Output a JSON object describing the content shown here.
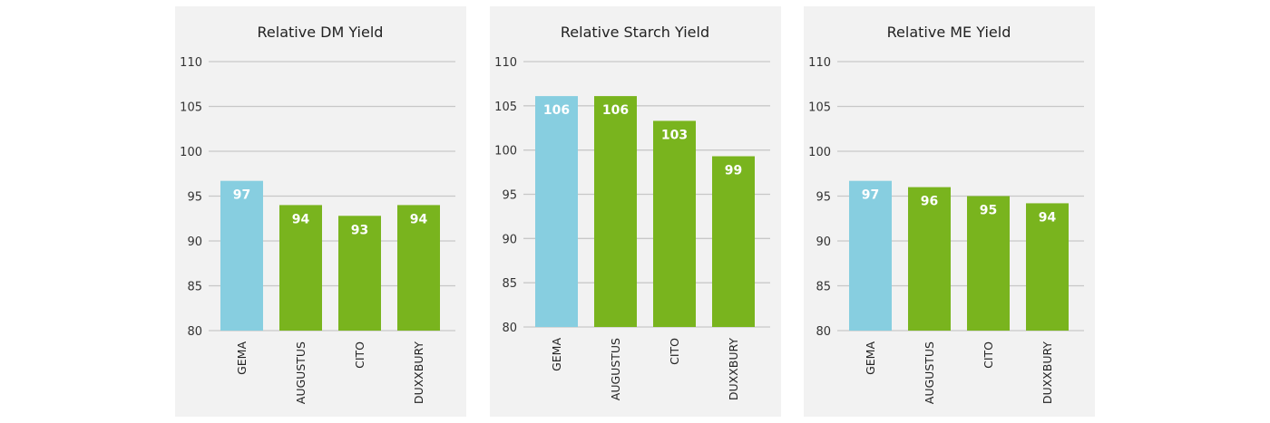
{
  "colors": {
    "highlight": "#87cee0",
    "bar": "#79b41e",
    "grid": "#c8c8c8",
    "background": "#f2f2f2"
  },
  "chart_data": [
    {
      "type": "bar",
      "title": "Relative DM Yield",
      "categories": [
        "GEMA",
        "AUGUSTUS",
        "CITO",
        "DUXXBURY"
      ],
      "values": [
        96.7,
        94.0,
        92.8,
        94.0
      ],
      "labels": [
        "97",
        "94",
        "93",
        "94"
      ],
      "ylim": [
        80,
        110
      ],
      "yticks": [
        "80",
        "85",
        "90",
        "95",
        "100",
        "105",
        "110"
      ],
      "grid": true
    },
    {
      "type": "bar",
      "title": "Relative Starch Yield",
      "categories": [
        "GEMA",
        "AUGUSTUS",
        "CITO",
        "DUXXBURY"
      ],
      "values": [
        106.1,
        106.1,
        103.3,
        99.3
      ],
      "labels": [
        "106",
        "106",
        "103",
        "99"
      ],
      "ylim": [
        80,
        110
      ],
      "yticks": [
        "80",
        "85",
        "90",
        "95",
        "100",
        "105",
        "110"
      ],
      "grid": true
    },
    {
      "type": "bar",
      "title": "Relative ME Yield",
      "categories": [
        "GEMA",
        "AUGUSTUS",
        "CITO",
        "DUXXBURY"
      ],
      "values": [
        96.7,
        96.0,
        95.0,
        94.2
      ],
      "labels": [
        "97",
        "96",
        "95",
        "94"
      ],
      "ylim": [
        80,
        110
      ],
      "yticks": [
        "80",
        "85",
        "90",
        "95",
        "100",
        "105",
        "110"
      ],
      "grid": true
    }
  ]
}
